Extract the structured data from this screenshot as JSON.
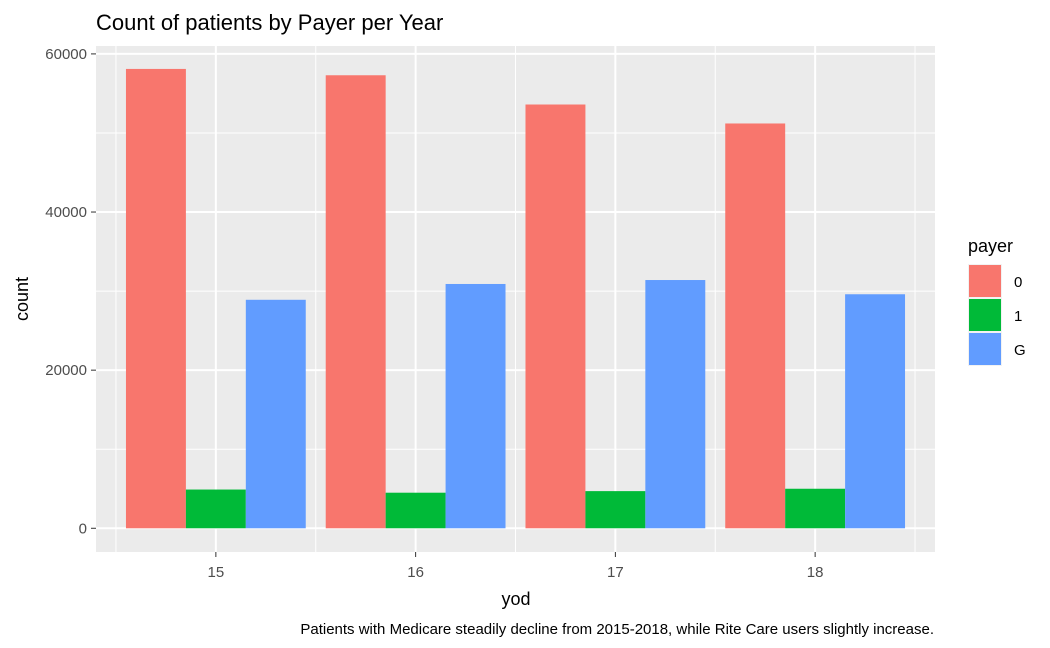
{
  "chart_data": {
    "type": "bar",
    "title": "Count of patients by Payer per Year",
    "xlabel": "yod",
    "ylabel": "count",
    "caption": "Patients with Medicare steadily decline from 2015-2018, while Rite Care users slightly increase.",
    "categories": [
      "15",
      "16",
      "17",
      "18"
    ],
    "series": [
      {
        "name": "0",
        "color": "#F8766D",
        "values": [
          58100,
          57300,
          53600,
          51200
        ]
      },
      {
        "name": "1",
        "color": "#00BA38",
        "values": [
          4900,
          4500,
          4700,
          5000
        ]
      },
      {
        "name": "G",
        "color": "#619CFF",
        "values": [
          28900,
          30900,
          31400,
          29600
        ]
      }
    ],
    "ylim": [
      -3000,
      61000
    ],
    "yticks": [
      0,
      20000,
      40000,
      60000
    ],
    "ytick_labels": [
      "0",
      "20000",
      "40000",
      "60000"
    ],
    "legend_title": "payer",
    "legend_position": "right",
    "grid": true,
    "panel_background": "#EBEBEB",
    "grid_color": "#FFFFFF"
  }
}
